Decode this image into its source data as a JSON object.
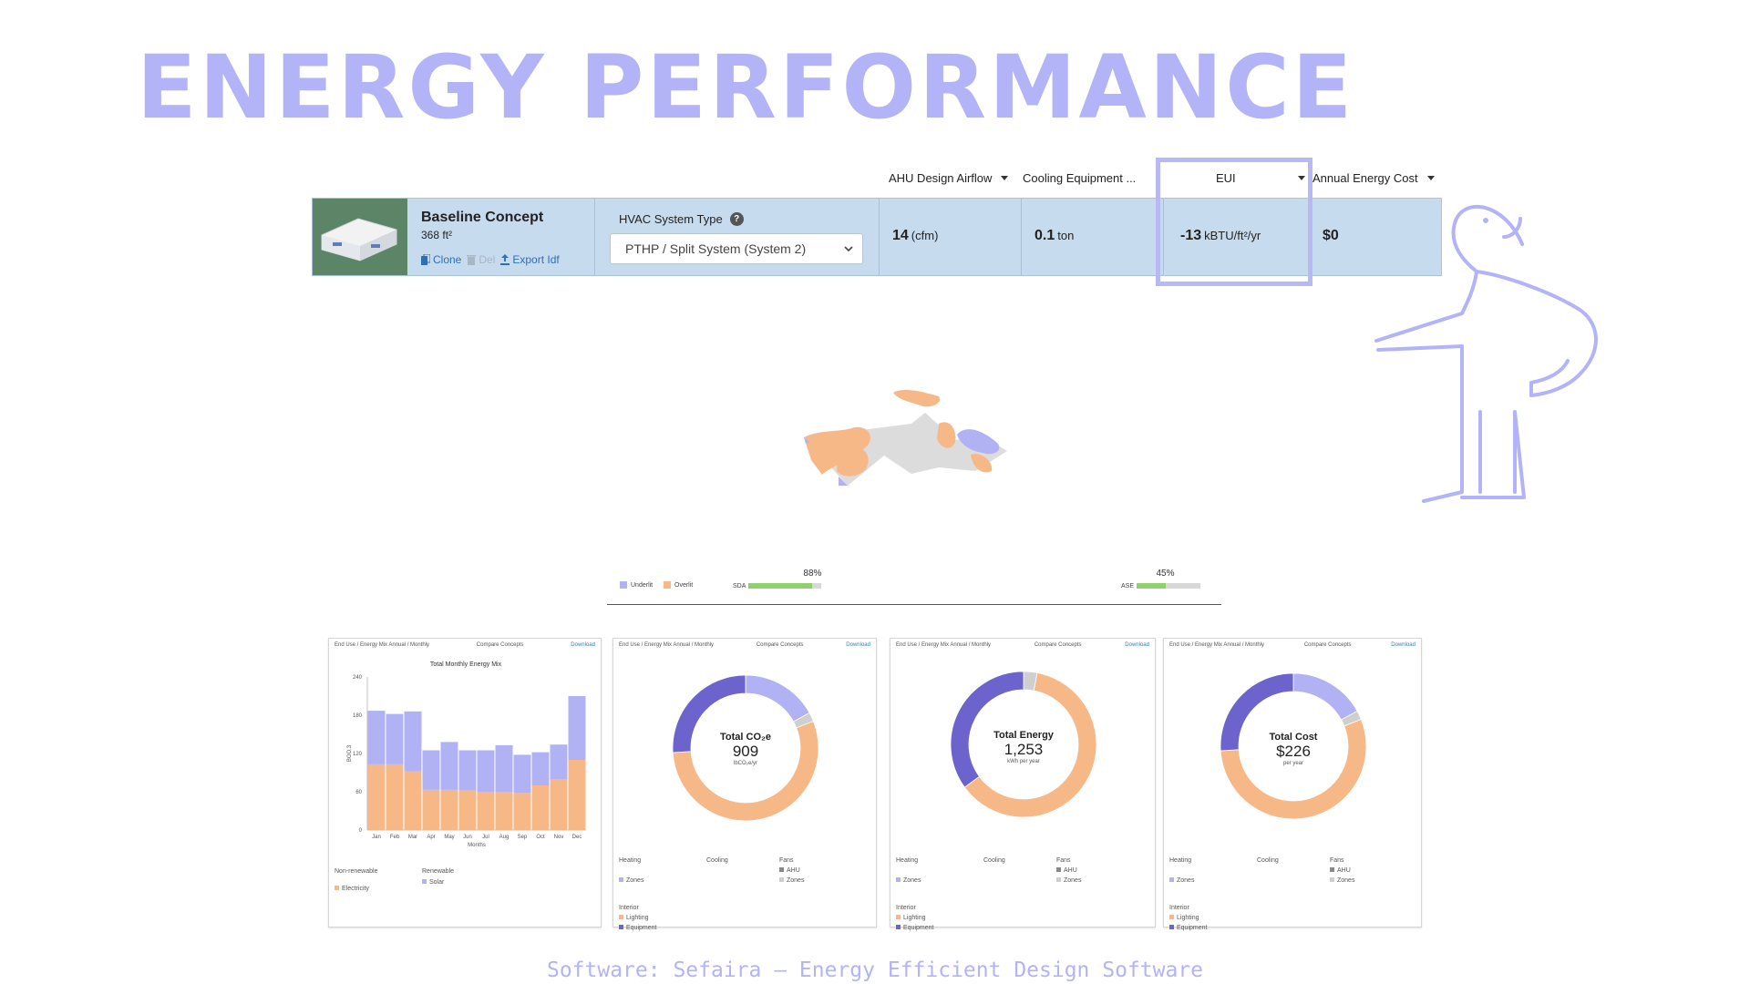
{
  "title": "ENERGY PERFORMANCE",
  "columns": [
    {
      "label": "AHU Design Airflow"
    },
    {
      "label": "Cooling Equipment ..."
    },
    {
      "label": "EUI"
    },
    {
      "label": "Annual Energy Cost"
    }
  ],
  "concept": {
    "name": "Baseline Concept",
    "area": "368 ft²",
    "actions": {
      "clone": "Clone",
      "delete": "Del",
      "export": "Export Idf"
    },
    "hvac_label": "HVAC System Type",
    "hvac_value": "PTHP / Split System (System 2)",
    "airflow": {
      "value": "14",
      "unit": "(cfm)"
    },
    "cooling": {
      "value": "0.1",
      "unit": "ton"
    },
    "eui": {
      "value": "-13",
      "unit": "kBTU/ft²/yr"
    },
    "cost": {
      "value": "$0"
    }
  },
  "daylight": {
    "legend": [
      "Underlit",
      "Overlit"
    ],
    "sda_label": "SDA",
    "sda_pct": "88%",
    "sda_fraction": 0.88,
    "ase_label": "ASE",
    "ase_pct": "45%",
    "ase_fraction": 0.45
  },
  "colors": {
    "title": "#b3b3f7",
    "lavender": "#b1b2f4",
    "peach": "#f7b887",
    "indigo": "#6c63cc",
    "grey": "#cfcfcf",
    "row_bg": "#c7dbee"
  },
  "cards": {
    "energy_mix": {
      "tabs": "End Use / Energy Mix  Annual / Monthly",
      "compare": "Compare Concepts",
      "download": "Download",
      "legend_nonrenew": "Non-renewable",
      "legend_renew": "Renewable",
      "legend_electricity": "Electricity",
      "legend_solar": "Solar"
    },
    "co2": {
      "tabs": "End Use / Energy Mix  Annual / Monthly",
      "compare": "Compare Concepts",
      "download": "Download",
      "center_title": "Total CO₂e",
      "center_value": "909",
      "center_unit": "lbCO₂e/yr"
    },
    "energy": {
      "tabs": "End Use / Energy Mix  Annual / Monthly",
      "compare": "Compare Concepts",
      "download": "Download",
      "center_title": "Total Energy",
      "center_value": "1,253",
      "center_unit": "kWh per year"
    },
    "cost": {
      "tabs": "End Use / Energy Mix  Annual / Monthly",
      "compare": "Compare Concepts",
      "download": "Download",
      "center_title": "Total Cost",
      "center_value": "$226",
      "center_unit": "per year"
    },
    "enduse_legend": {
      "heating": "Heating",
      "cooling": "Cooling",
      "fans": "Fans",
      "zones": "Zones",
      "ahu": "AHU",
      "zones2": "Zones",
      "interior": "Interior",
      "lighting": "Lighting",
      "equipment": "Equipment"
    }
  },
  "chart_data": [
    {
      "type": "bar",
      "title": "Total Monthly Energy Mix",
      "xlabel": "Months",
      "ylabel": "BOO.3",
      "ylim": [
        0,
        240
      ],
      "yticks": [
        0,
        60,
        120,
        180,
        240
      ],
      "categories": [
        "Jan",
        "Feb",
        "Mar",
        "Apr",
        "May",
        "Jun",
        "Jul",
        "Aug",
        "Sep",
        "Oct",
        "Nov",
        "Dec"
      ],
      "stacked": true,
      "series": [
        {
          "name": "Electricity",
          "values": [
            103,
            103,
            92,
            63,
            63,
            62,
            60,
            60,
            58,
            70,
            80,
            110
          ]
        },
        {
          "name": "Solar",
          "values": [
            84,
            79,
            94,
            62,
            75,
            63,
            65,
            73,
            60,
            52,
            54,
            100
          ]
        }
      ]
    },
    {
      "type": "pie",
      "title": "Total CO₂e",
      "slices": [
        {
          "name": "Fans AHU",
          "value": 17,
          "color": "#b1b2f4"
        },
        {
          "name": "Fans Zones",
          "value": 2,
          "color": "#cfcfcf"
        },
        {
          "name": "Lighting",
          "value": 55,
          "color": "#f7b887"
        },
        {
          "name": "Equipment",
          "value": 26,
          "color": "#6c63cc"
        }
      ]
    },
    {
      "type": "pie",
      "title": "Total Energy",
      "slices": [
        {
          "name": "Fans Zones",
          "value": 3,
          "color": "#cfcfcf"
        },
        {
          "name": "Lighting",
          "value": 62,
          "color": "#f7b887"
        },
        {
          "name": "Equipment",
          "value": 35,
          "color": "#6c63cc"
        }
      ]
    },
    {
      "type": "pie",
      "title": "Total Cost",
      "slices": [
        {
          "name": "Fans AHU",
          "value": 17,
          "color": "#b1b2f4"
        },
        {
          "name": "Fans Zones",
          "value": 2,
          "color": "#cfcfcf"
        },
        {
          "name": "Lighting",
          "value": 55,
          "color": "#f7b887"
        },
        {
          "name": "Equipment",
          "value": 26,
          "color": "#6c63cc"
        }
      ]
    }
  ],
  "footer": "Software: Sefaira – Energy Efficient Design Software"
}
